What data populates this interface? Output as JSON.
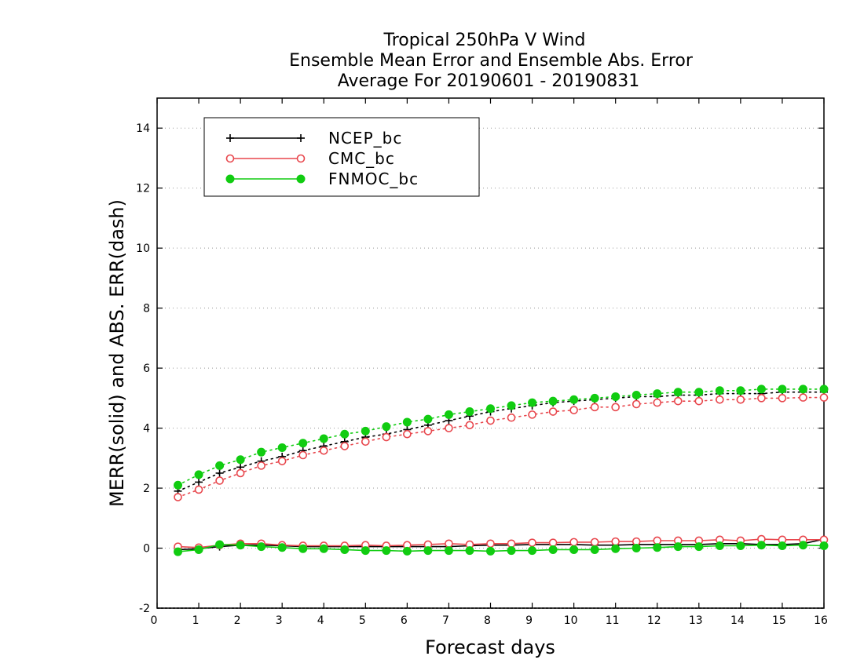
{
  "chart_data": {
    "type": "line",
    "title": [
      "Tropical 250hPa V Wind",
      "Ensemble Mean Error and Ensemble Abs. Error",
      "Average For 20190601 - 20190831"
    ],
    "xlabel": "Forecast days",
    "ylabel": "MERR(solid) and ABS. ERR(dash)",
    "xlim": [
      0,
      16
    ],
    "ylim": [
      -2,
      15
    ],
    "xticks": [
      "0",
      "1",
      "2",
      "3",
      "4",
      "5",
      "6",
      "7",
      "8",
      "9",
      "10",
      "11",
      "12",
      "13",
      "14",
      "15",
      "16"
    ],
    "yticks": [
      "-2",
      "0",
      "2",
      "4",
      "6",
      "8",
      "10",
      "12",
      "14"
    ],
    "grid": "horizontal dotted",
    "legend_position": "top-left",
    "x": [
      0.5,
      1,
      1.5,
      2,
      2.5,
      3,
      3.5,
      4,
      4.5,
      5,
      5.5,
      6,
      6.5,
      7,
      7.5,
      8,
      8.5,
      9,
      9.5,
      10,
      10.5,
      11,
      11.5,
      12,
      12.5,
      13,
      13.5,
      14,
      14.5,
      15,
      15.5,
      16
    ],
    "series": [
      {
        "name": "NCEP_bc",
        "color": "#000000",
        "marker": "plus",
        "merr": [
          -0.05,
          -0.02,
          0.05,
          0.1,
          0.1,
          0.08,
          0.05,
          0.05,
          0.05,
          0.05,
          0.05,
          0.05,
          0.05,
          0.05,
          0.08,
          0.1,
          0.1,
          0.12,
          0.12,
          0.12,
          0.1,
          0.1,
          0.12,
          0.12,
          0.12,
          0.12,
          0.15,
          0.15,
          0.12,
          0.12,
          0.15,
          0.3
        ],
        "abs_err": [
          1.9,
          2.2,
          2.5,
          2.7,
          2.9,
          3.05,
          3.25,
          3.4,
          3.55,
          3.7,
          3.8,
          3.95,
          4.1,
          4.25,
          4.4,
          4.55,
          4.65,
          4.75,
          4.85,
          4.9,
          4.95,
          5.0,
          5.05,
          5.05,
          5.1,
          5.1,
          5.15,
          5.15,
          5.15,
          5.2,
          5.2,
          5.2
        ]
      },
      {
        "name": "CMC_bc",
        "color": "#e8474d",
        "marker": "open-circle",
        "merr": [
          0.05,
          0.02,
          0.1,
          0.15,
          0.15,
          0.1,
          0.08,
          0.08,
          0.08,
          0.1,
          0.08,
          0.1,
          0.12,
          0.15,
          0.12,
          0.15,
          0.15,
          0.18,
          0.18,
          0.2,
          0.2,
          0.22,
          0.22,
          0.25,
          0.25,
          0.25,
          0.28,
          0.25,
          0.3,
          0.28,
          0.28,
          0.28
        ],
        "abs_err": [
          1.7,
          1.95,
          2.25,
          2.5,
          2.75,
          2.9,
          3.1,
          3.25,
          3.4,
          3.55,
          3.7,
          3.8,
          3.9,
          4.0,
          4.1,
          4.25,
          4.35,
          4.45,
          4.55,
          4.6,
          4.7,
          4.7,
          4.8,
          4.85,
          4.9,
          4.9,
          4.95,
          4.95,
          5.0,
          5.0,
          5.02,
          5.02
        ]
      },
      {
        "name": "FNMOC_bc",
        "color": "#11cc11",
        "marker": "filled-circle",
        "merr": [
          -0.12,
          -0.05,
          0.12,
          0.1,
          0.05,
          0.02,
          -0.02,
          -0.02,
          -0.05,
          -0.08,
          -0.08,
          -0.1,
          -0.08,
          -0.08,
          -0.08,
          -0.1,
          -0.08,
          -0.08,
          -0.05,
          -0.05,
          -0.05,
          -0.02,
          0.0,
          0.02,
          0.05,
          0.05,
          0.08,
          0.08,
          0.1,
          0.08,
          0.1,
          0.08
        ],
        "abs_err": [
          2.1,
          2.45,
          2.75,
          2.95,
          3.2,
          3.35,
          3.5,
          3.65,
          3.8,
          3.9,
          4.05,
          4.2,
          4.3,
          4.45,
          4.55,
          4.65,
          4.75,
          4.85,
          4.9,
          4.95,
          5.0,
          5.05,
          5.1,
          5.15,
          5.2,
          5.2,
          5.25,
          5.25,
          5.3,
          5.3,
          5.3,
          5.3
        ]
      }
    ]
  }
}
